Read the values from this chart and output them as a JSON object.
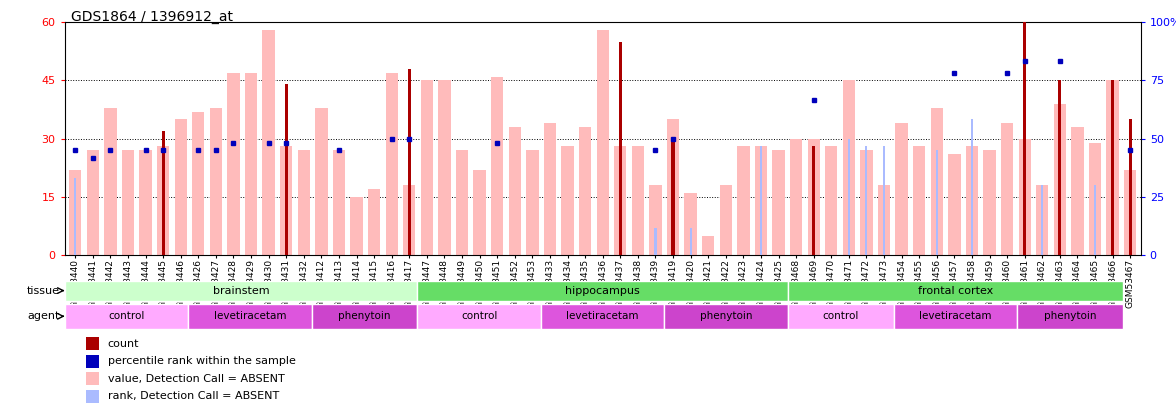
{
  "title": "GDS1864 / 1396912_at",
  "samples": [
    "GSM53440",
    "GSM53441",
    "GSM53442",
    "GSM53443",
    "GSM53444",
    "GSM53445",
    "GSM53446",
    "GSM53426",
    "GSM53427",
    "GSM53428",
    "GSM53429",
    "GSM53430",
    "GSM53431",
    "GSM53432",
    "GSM53412",
    "GSM53413",
    "GSM53414",
    "GSM53415",
    "GSM53416",
    "GSM53417",
    "GSM53447",
    "GSM53448",
    "GSM53449",
    "GSM53450",
    "GSM53451",
    "GSM53452",
    "GSM53453",
    "GSM53433",
    "GSM53434",
    "GSM53435",
    "GSM53436",
    "GSM53437",
    "GSM53438",
    "GSM53439",
    "GSM53419",
    "GSM53420",
    "GSM53421",
    "GSM53422",
    "GSM53423",
    "GSM53424",
    "GSM53425",
    "GSM53468",
    "GSM53469",
    "GSM53470",
    "GSM53471",
    "GSM53472",
    "GSM53473",
    "GSM53454",
    "GSM53455",
    "GSM53456",
    "GSM53457",
    "GSM53458",
    "GSM53459",
    "GSM53460",
    "GSM53461",
    "GSM53462",
    "GSM53463",
    "GSM53464",
    "GSM53465",
    "GSM53466",
    "GSM53467"
  ],
  "pink_values": [
    22,
    27,
    38,
    27,
    27,
    28,
    35,
    37,
    38,
    47,
    47,
    58,
    28,
    27,
    38,
    27,
    15,
    17,
    47,
    18,
    45,
    45,
    27,
    22,
    46,
    33,
    27,
    34,
    28,
    33,
    58,
    28,
    28,
    18,
    35,
    16,
    5,
    18,
    28,
    28,
    27,
    30,
    30,
    28,
    45,
    27,
    18,
    34,
    28,
    38,
    26,
    28,
    27,
    34,
    30,
    18,
    39,
    33,
    29,
    45,
    22
  ],
  "dark_red_values": [
    0,
    0,
    0,
    0,
    0,
    32,
    0,
    0,
    0,
    0,
    0,
    0,
    44,
    0,
    0,
    0,
    0,
    0,
    0,
    48,
    0,
    0,
    0,
    0,
    0,
    0,
    0,
    0,
    0,
    0,
    0,
    55,
    0,
    0,
    30,
    0,
    0,
    0,
    0,
    0,
    0,
    0,
    28,
    0,
    0,
    0,
    0,
    0,
    0,
    0,
    0,
    0,
    0,
    0,
    60,
    0,
    45,
    0,
    0,
    45,
    35
  ],
  "blue_dot_values": [
    27,
    25,
    27,
    0,
    27,
    27,
    0,
    27,
    27,
    29,
    0,
    29,
    29,
    0,
    0,
    27,
    0,
    0,
    30,
    30,
    0,
    0,
    0,
    0,
    29,
    0,
    0,
    0,
    0,
    0,
    0,
    0,
    0,
    27,
    30,
    0,
    0,
    0,
    0,
    0,
    0,
    0,
    40,
    0,
    0,
    0,
    0,
    0,
    0,
    0,
    47,
    0,
    0,
    47,
    50,
    0,
    50,
    0,
    0,
    0,
    27
  ],
  "light_blue_values": [
    20,
    0,
    0,
    0,
    0,
    0,
    0,
    0,
    0,
    0,
    0,
    0,
    0,
    0,
    0,
    0,
    0,
    0,
    0,
    0,
    0,
    0,
    0,
    0,
    0,
    0,
    0,
    0,
    0,
    0,
    0,
    0,
    0,
    7,
    0,
    7,
    0,
    0,
    0,
    28,
    0,
    0,
    0,
    0,
    30,
    28,
    28,
    0,
    0,
    27,
    0,
    35,
    0,
    0,
    0,
    18,
    0,
    0,
    18,
    0,
    0
  ],
  "tissue_sections": [
    {
      "label": "brainstem",
      "start": 0,
      "end": 20,
      "color": "#ccffcc"
    },
    {
      "label": "hippocampus",
      "start": 20,
      "end": 41,
      "color": "#66dd66"
    },
    {
      "label": "frontal cortex",
      "start": 41,
      "end": 60,
      "color": "#66dd66"
    }
  ],
  "agent_sections": [
    {
      "label": "control",
      "start": 0,
      "end": 7,
      "color": "#ffaaff"
    },
    {
      "label": "levetiracetam",
      "start": 7,
      "end": 14,
      "color": "#dd55dd"
    },
    {
      "label": "phenytoin",
      "start": 14,
      "end": 20,
      "color": "#ee77ee"
    },
    {
      "label": "control",
      "start": 20,
      "end": 27,
      "color": "#ffaaff"
    },
    {
      "label": "levetiracetam",
      "start": 27,
      "end": 34,
      "color": "#dd55dd"
    },
    {
      "label": "phenytoin",
      "start": 34,
      "end": 41,
      "color": "#ee77ee"
    },
    {
      "label": "control",
      "start": 41,
      "end": 47,
      "color": "#ffaaff"
    },
    {
      "label": "levetiracetam",
      "start": 47,
      "end": 54,
      "color": "#dd55dd"
    },
    {
      "label": "phenytoin",
      "start": 54,
      "end": 60,
      "color": "#ee77ee"
    }
  ],
  "ylim_left": [
    0,
    60
  ],
  "ylim_right": [
    0,
    100
  ],
  "yticks_left": [
    0,
    15,
    30,
    45,
    60
  ],
  "yticks_right": [
    0,
    25,
    50,
    75,
    100
  ],
  "pink_color": "#ffbbbb",
  "dark_red_color": "#aa0000",
  "blue_dot_color": "#0000bb",
  "light_blue_color": "#aabbff",
  "title_fontsize": 10,
  "tick_fontsize": 6.5,
  "background_color": "#ffffff"
}
